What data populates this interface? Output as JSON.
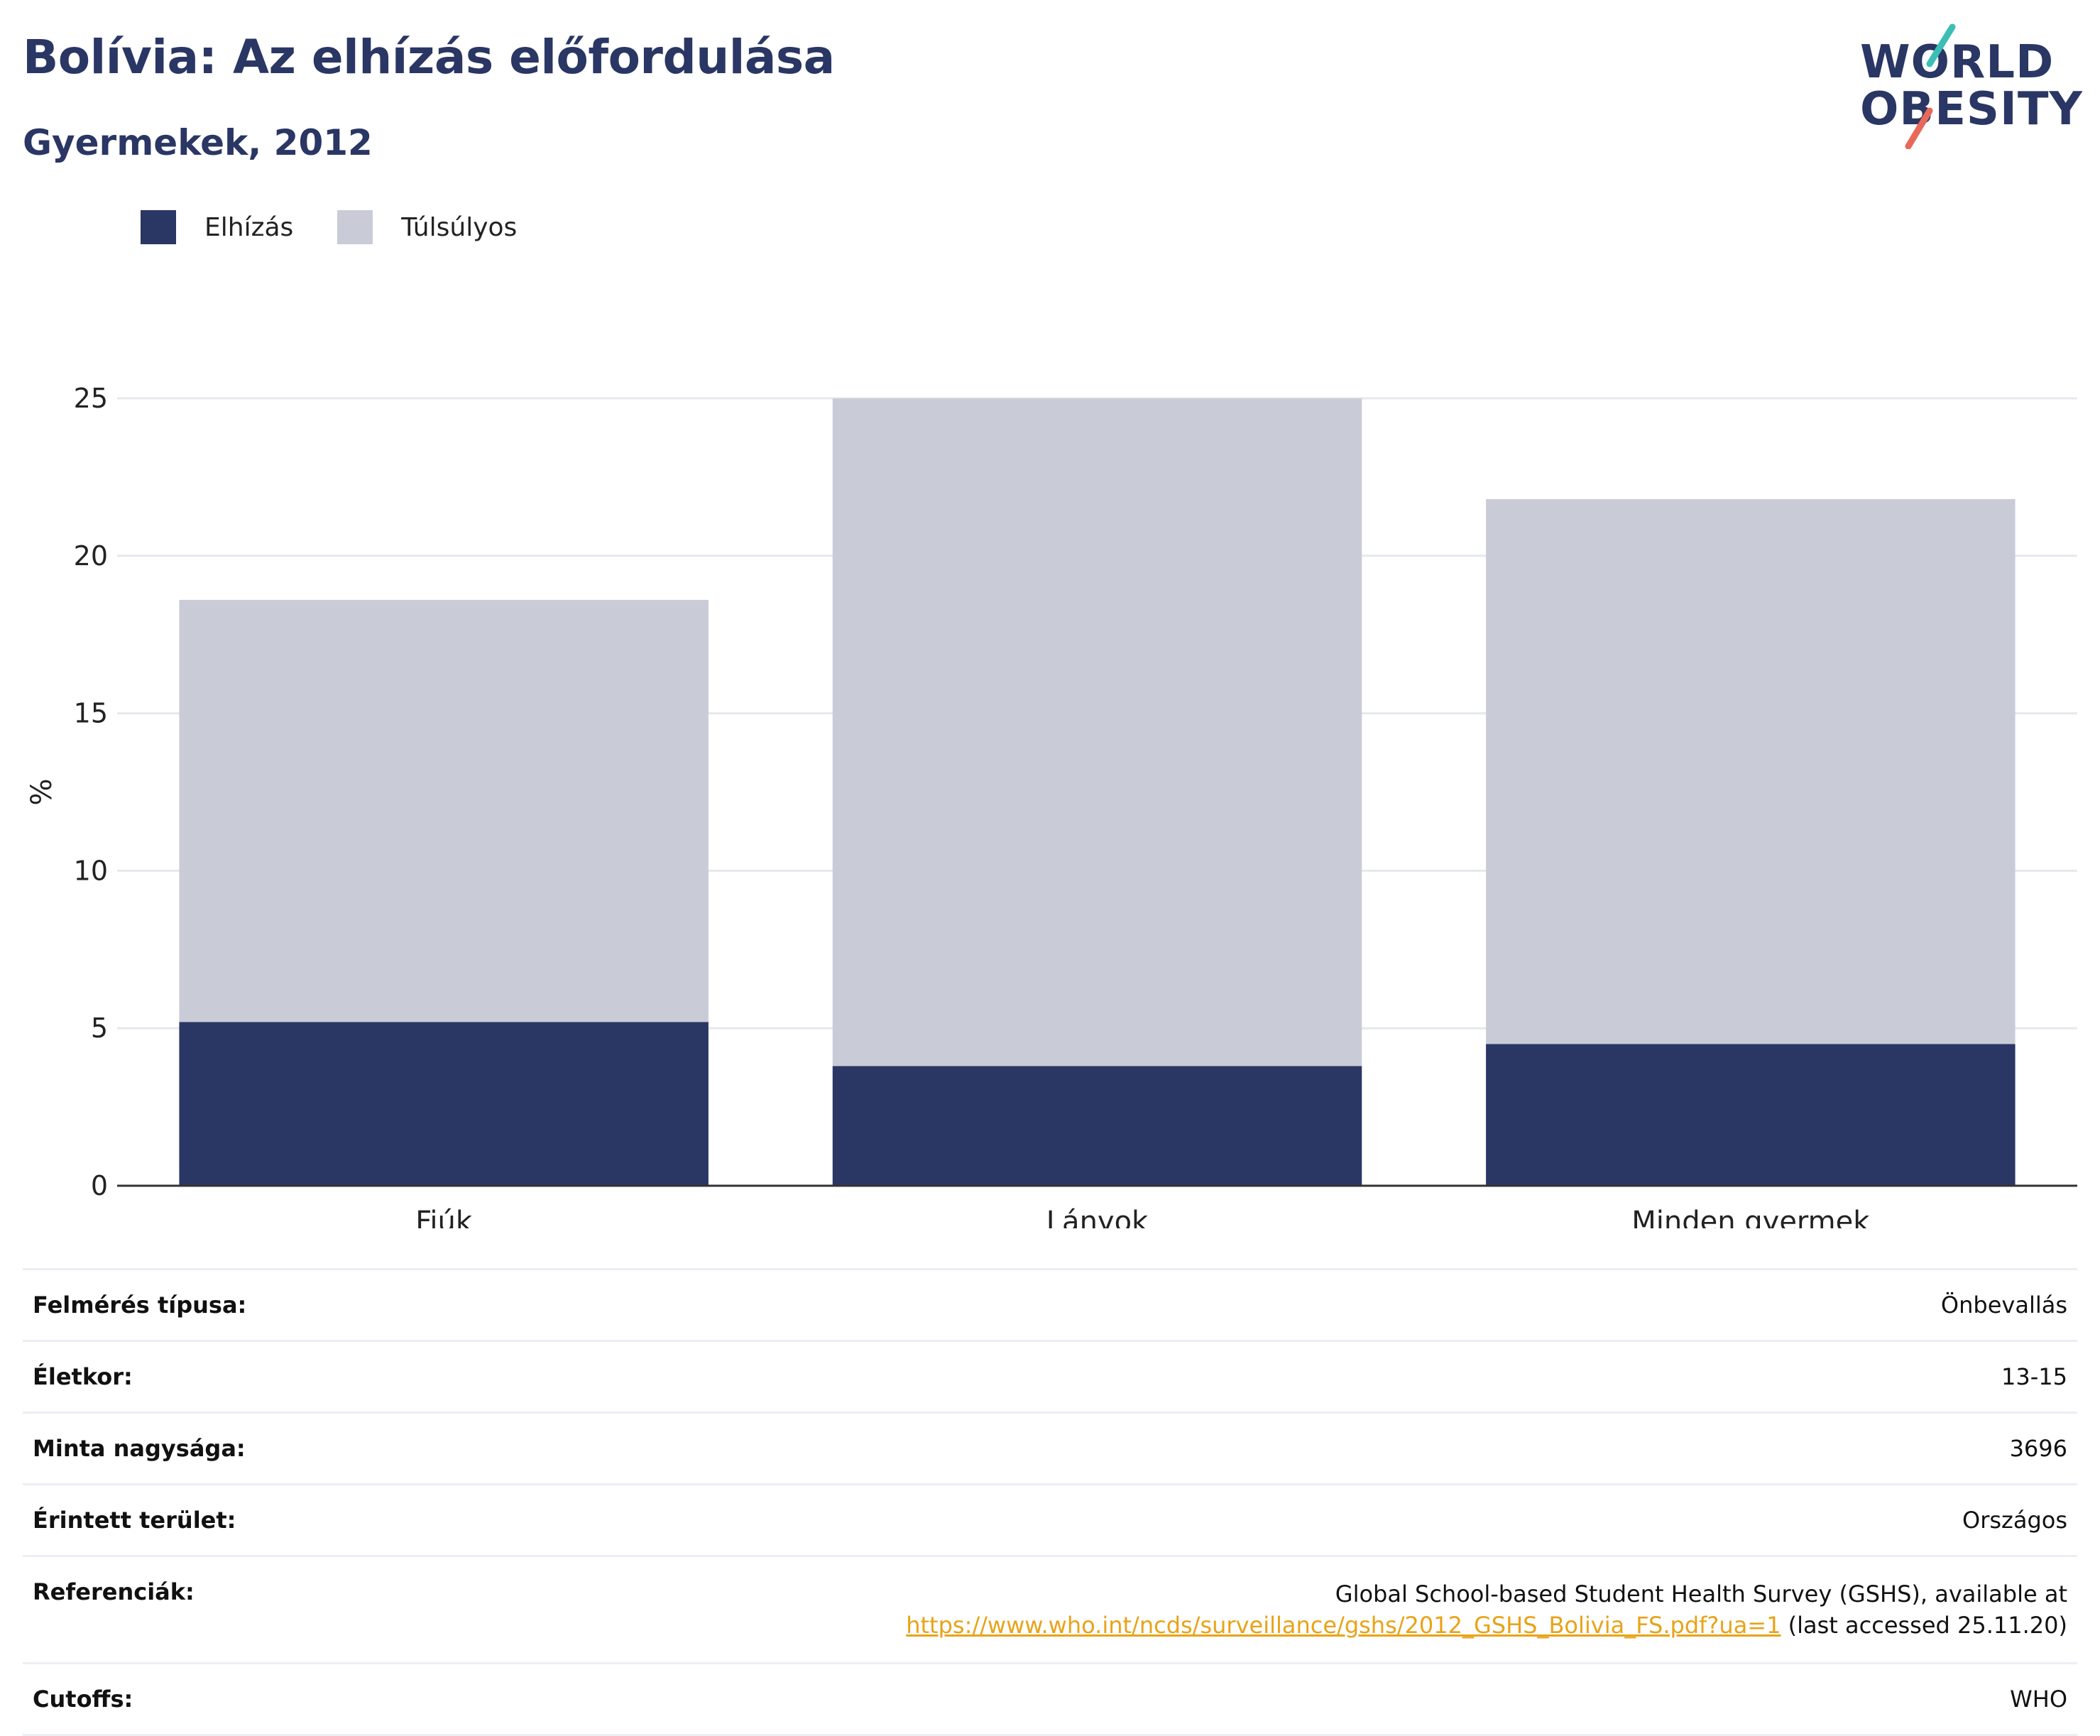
{
  "header": {
    "title": "Bolívia: Az elhízás előfordulása",
    "subtitle": "Gyermekek, 2012",
    "logo_line1": "WORLD",
    "logo_line2": "OBESITY"
  },
  "legend": [
    {
      "label": "Elhízás",
      "color": "#2a3664"
    },
    {
      "label": "Túlsúlyos",
      "color": "#c9cbd7"
    }
  ],
  "chart_data": {
    "type": "bar",
    "stacked": true,
    "categories": [
      "Fiúk",
      "Lányok",
      "Minden gyermek"
    ],
    "series": [
      {
        "name": "Elhízás",
        "values": [
          5.2,
          3.8,
          4.5
        ],
        "color": "#2a3664"
      },
      {
        "name": "Túlsúlyos",
        "values": [
          13.4,
          21.2,
          17.3
        ],
        "color": "#c9cbd7"
      }
    ],
    "ylabel": "%",
    "yticks": [
      0,
      5,
      10,
      15,
      20,
      25
    ],
    "ylim": [
      0,
      25
    ],
    "grid": true,
    "legend_position": "top-left"
  },
  "info_table": [
    {
      "label": "Felmérés típusa:",
      "value": "Önbevallás"
    },
    {
      "label": "Életkor:",
      "value": "13-15"
    },
    {
      "label": "Minta nagysága:",
      "value": "3696"
    },
    {
      "label": "Érintett terület:",
      "value": "Országos"
    },
    {
      "label": "Referenciák:",
      "value_line1": "Global School-based Student Health Survey (GSHS), available at",
      "link": "https://www.who.int/ncds/surveillance/gshs/2012_GSHS_Bolivia_FS.pdf?ua=1",
      "value_suffix": " (last accessed 25.11.20)"
    },
    {
      "label": "Cutoffs:",
      "value": "WHO"
    }
  ],
  "colors": {
    "brand": "#2a3664",
    "accent_teal": "#3bbfb5",
    "accent_coral": "#e8685a",
    "link": "#e8a318"
  }
}
